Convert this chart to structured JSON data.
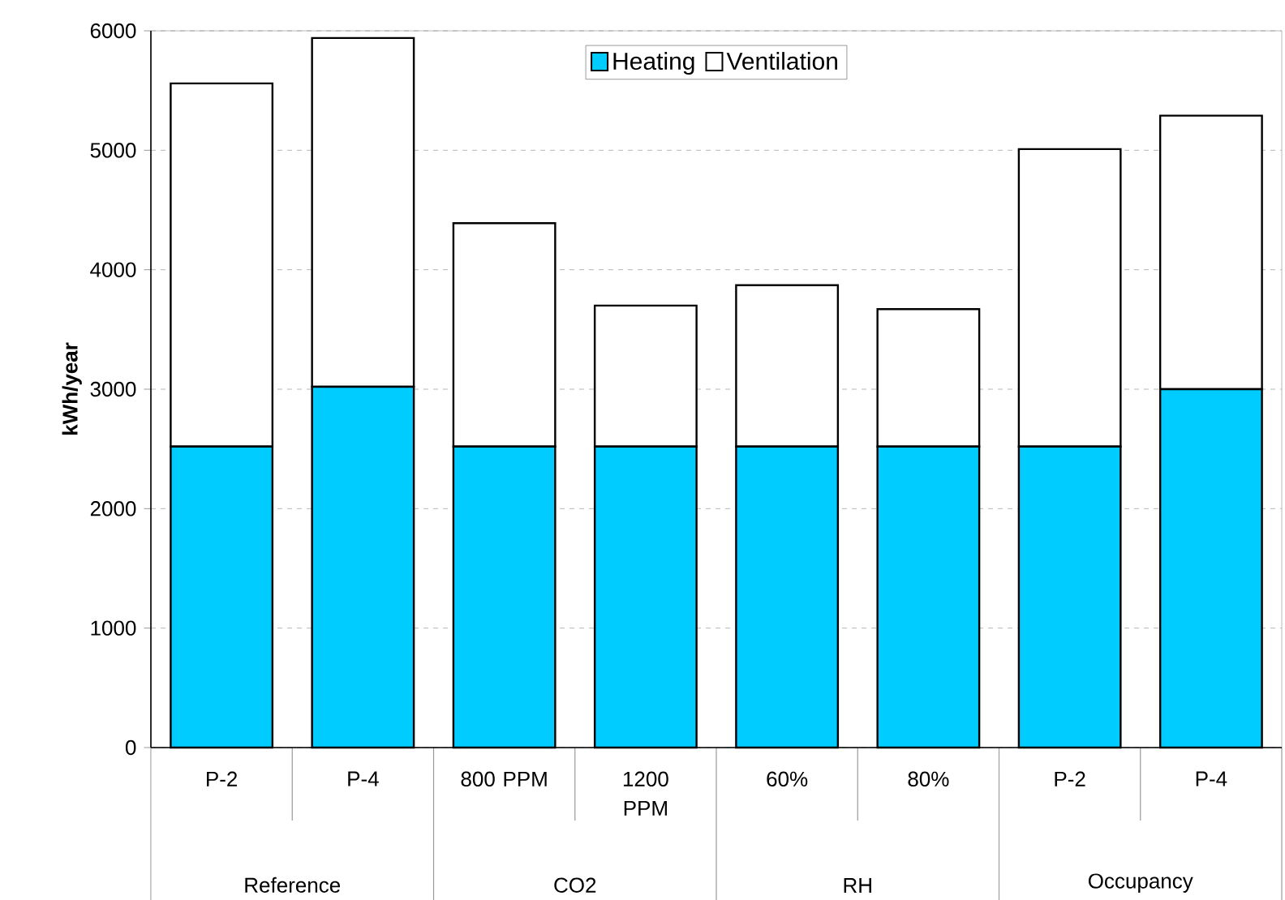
{
  "chart_data": {
    "type": "bar",
    "stacked": true,
    "ylabel": "kWh/year",
    "categories": [
      "P-2",
      "P-4",
      "800 PPM",
      "1200 PPM",
      "60%",
      "80%",
      "P-2",
      "P-4"
    ],
    "series": [
      {
        "name": "Heating",
        "color": "#00ccff",
        "values": [
          2520,
          3020,
          2520,
          2520,
          2520,
          2520,
          2520,
          3000
        ]
      },
      {
        "name": "Ventilation",
        "color": "#ffffff",
        "values": [
          3040,
          2920,
          1870,
          1180,
          1350,
          1150,
          2490,
          2290
        ]
      }
    ],
    "annotations": [
      "Reference",
      "CO2",
      "RH",
      "Occupancy"
    ],
    "ylim": [
      0,
      6000
    ],
    "yticks": [
      0,
      1000,
      2000,
      3000,
      4000,
      5000,
      6000
    ],
    "grid": "y",
    "legend": "top"
  }
}
